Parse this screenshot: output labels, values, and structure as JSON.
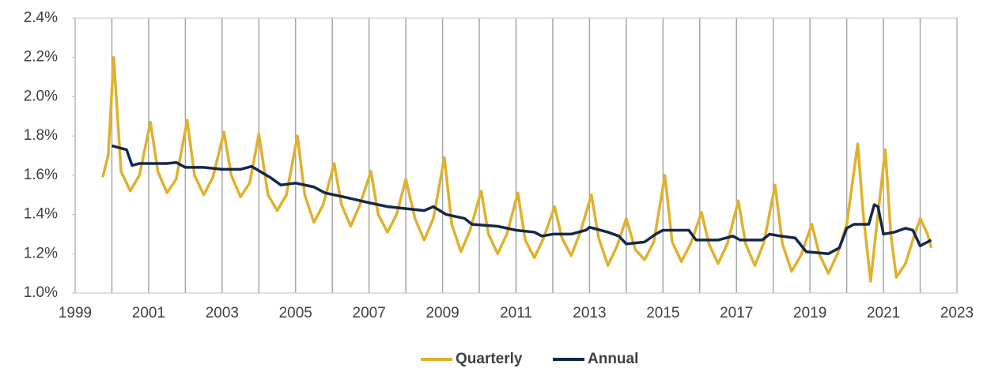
{
  "chart_data": {
    "type": "line",
    "xlim": [
      1999,
      2023
    ],
    "xticks": [
      1999,
      2001,
      2003,
      2005,
      2007,
      2009,
      2011,
      2013,
      2015,
      2017,
      2019,
      2021,
      2023
    ],
    "x_minor_ticks": [
      2000,
      2002,
      2004,
      2006,
      2008,
      2010,
      2012,
      2014,
      2016,
      2018,
      2020,
      2022
    ],
    "ylim": [
      1.0,
      2.4
    ],
    "yticks": [
      {
        "value": 1.0,
        "label": "1.0%"
      },
      {
        "value": 1.2,
        "label": "1.2%"
      },
      {
        "value": 1.4,
        "label": "1.4%"
      },
      {
        "value": 1.6,
        "label": "1.6%"
      },
      {
        "value": 1.8,
        "label": "1.8%"
      },
      {
        "value": 2.0,
        "label": "2.0%"
      },
      {
        "value": 2.2,
        "label": "2.2%"
      },
      {
        "value": 2.4,
        "label": "2.4%"
      }
    ],
    "grid": "x",
    "legend": "bottom",
    "series": [
      {
        "name": "Quarterly",
        "color": "#e0b12e",
        "x": [
          1999.75,
          1999.9,
          2000.05,
          2000.25,
          2000.5,
          2000.75,
          2001.05,
          2001.25,
          2001.5,
          2001.75,
          2002.05,
          2002.25,
          2002.5,
          2002.75,
          2003.05,
          2003.25,
          2003.5,
          2003.75,
          2004.0,
          2004.25,
          2004.5,
          2004.75,
          2005.05,
          2005.25,
          2005.5,
          2005.75,
          2006.05,
          2006.25,
          2006.5,
          2006.75,
          2007.05,
          2007.25,
          2007.5,
          2007.75,
          2008.0,
          2008.25,
          2008.5,
          2008.75,
          2009.05,
          2009.25,
          2009.5,
          2009.75,
          2010.05,
          2010.25,
          2010.5,
          2010.75,
          2011.05,
          2011.25,
          2011.5,
          2011.75,
          2012.05,
          2012.25,
          2012.5,
          2012.75,
          2013.05,
          2013.25,
          2013.5,
          2013.75,
          2014.0,
          2014.25,
          2014.5,
          2014.75,
          2015.05,
          2015.25,
          2015.5,
          2015.75,
          2016.05,
          2016.25,
          2016.5,
          2016.75,
          2017.05,
          2017.25,
          2017.5,
          2017.75,
          2018.05,
          2018.25,
          2018.5,
          2018.75,
          2019.05,
          2019.25,
          2019.5,
          2019.75,
          2020.0,
          2020.3,
          2020.45,
          2020.65,
          2020.85,
          2021.05,
          2021.2,
          2021.35,
          2021.6,
          2021.85,
          2022.0,
          2022.2,
          2022.3
        ],
        "values": [
          1.59,
          1.7,
          2.2,
          1.62,
          1.52,
          1.6,
          1.87,
          1.62,
          1.51,
          1.58,
          1.88,
          1.6,
          1.5,
          1.59,
          1.82,
          1.6,
          1.49,
          1.56,
          1.81,
          1.5,
          1.42,
          1.5,
          1.8,
          1.5,
          1.36,
          1.45,
          1.66,
          1.45,
          1.34,
          1.45,
          1.62,
          1.4,
          1.31,
          1.4,
          1.58,
          1.38,
          1.27,
          1.38,
          1.69,
          1.35,
          1.21,
          1.32,
          1.52,
          1.3,
          1.2,
          1.3,
          1.51,
          1.27,
          1.18,
          1.28,
          1.44,
          1.28,
          1.19,
          1.31,
          1.5,
          1.28,
          1.14,
          1.24,
          1.38,
          1.22,
          1.17,
          1.26,
          1.6,
          1.26,
          1.16,
          1.25,
          1.41,
          1.25,
          1.15,
          1.25,
          1.47,
          1.25,
          1.14,
          1.26,
          1.55,
          1.25,
          1.11,
          1.19,
          1.35,
          1.2,
          1.1,
          1.2,
          1.35,
          1.76,
          1.4,
          1.06,
          1.4,
          1.73,
          1.3,
          1.08,
          1.15,
          1.3,
          1.38,
          1.3,
          1.23
        ]
      },
      {
        "name": "Annual",
        "color": "#14284b",
        "x": [
          2000.0,
          2000.4,
          2000.55,
          2000.75,
          2001.5,
          2001.75,
          2002.0,
          2002.5,
          2003.0,
          2003.5,
          2003.8,
          2004.3,
          2004.6,
          2005.0,
          2005.5,
          2005.8,
          2006.3,
          2007.0,
          2007.5,
          2008.0,
          2008.5,
          2008.75,
          2009.1,
          2009.6,
          2009.8,
          2010.5,
          2011.0,
          2011.5,
          2011.7,
          2012.0,
          2012.5,
          2012.9,
          2013.0,
          2013.5,
          2013.8,
          2014.0,
          2014.5,
          2014.8,
          2015.0,
          2015.7,
          2015.9,
          2016.5,
          2016.9,
          2017.1,
          2017.7,
          2017.9,
          2018.2,
          2018.6,
          2018.9,
          2019.5,
          2019.8,
          2020.0,
          2020.2,
          2020.6,
          2020.75,
          2020.85,
          2021.0,
          2021.3,
          2021.6,
          2021.8,
          2022.0,
          2022.3
        ],
        "values": [
          1.75,
          1.73,
          1.65,
          1.66,
          1.66,
          1.665,
          1.64,
          1.64,
          1.63,
          1.63,
          1.645,
          1.59,
          1.55,
          1.56,
          1.54,
          1.51,
          1.49,
          1.46,
          1.44,
          1.43,
          1.42,
          1.44,
          1.4,
          1.38,
          1.35,
          1.34,
          1.32,
          1.31,
          1.29,
          1.3,
          1.3,
          1.32,
          1.335,
          1.31,
          1.29,
          1.25,
          1.26,
          1.3,
          1.32,
          1.32,
          1.27,
          1.27,
          1.29,
          1.27,
          1.27,
          1.3,
          1.29,
          1.28,
          1.21,
          1.2,
          1.23,
          1.33,
          1.35,
          1.35,
          1.45,
          1.44,
          1.3,
          1.31,
          1.33,
          1.32,
          1.24,
          1.27
        ]
      }
    ]
  }
}
